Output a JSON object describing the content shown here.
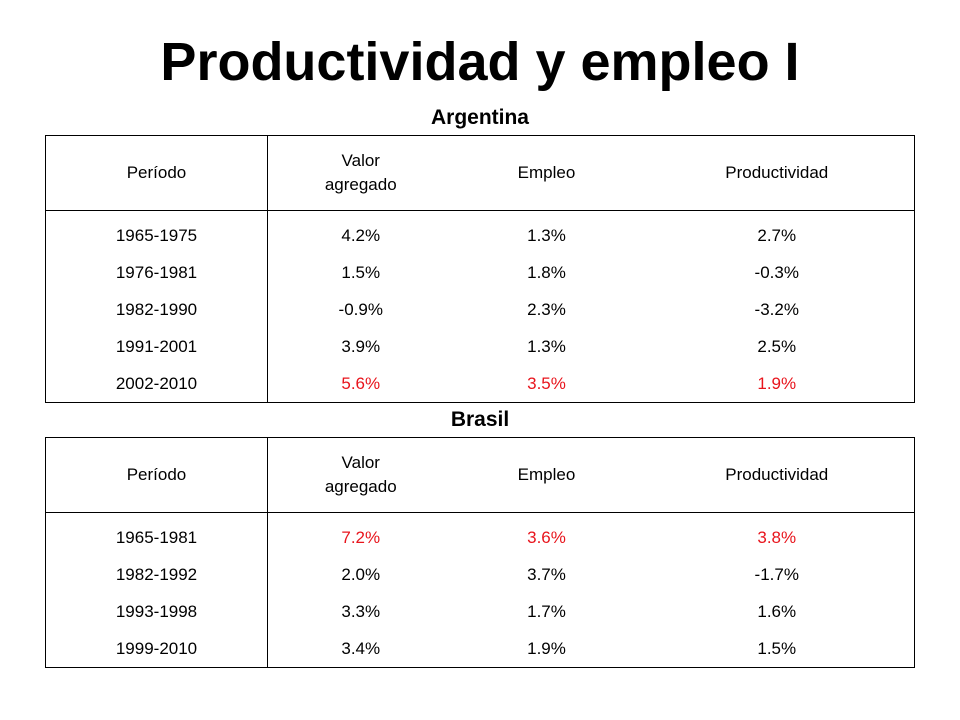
{
  "title": "Productividad y empleo I",
  "argentina": {
    "title": "Argentina",
    "headers": [
      "Período",
      "Valor agregado",
      "Empleo",
      "Productividad"
    ],
    "rows": [
      {
        "periodo": "1965-1975",
        "valor": "4.2%",
        "empleo": "1.3%",
        "productividad": "2.7%",
        "highlight": false
      },
      {
        "periodo": "1976-1981",
        "valor": "1.5%",
        "empleo": "1.8%",
        "productividad": "-0.3%",
        "highlight": false
      },
      {
        "periodo": "1982-1990",
        "valor": "-0.9%",
        "empleo": "2.3%",
        "productividad": "-3.2%",
        "highlight": false
      },
      {
        "periodo": "1991-2001",
        "valor": "3.9%",
        "empleo": "1.3%",
        "productividad": "2.5%",
        "highlight": false
      },
      {
        "periodo": "2002-2010",
        "valor": "5.6%",
        "empleo": "3.5%",
        "productividad": "1.9%",
        "highlight": true
      }
    ]
  },
  "brasil": {
    "title": "Brasil",
    "headers": [
      "Período",
      "Valor agregado",
      "Empleo",
      "Productividad"
    ],
    "rows": [
      {
        "periodo": "1965-1981",
        "valor": "7.2%",
        "empleo": "3.6%",
        "productividad": "3.8%",
        "highlight": true
      },
      {
        "periodo": "1982-1992",
        "valor": "2.0%",
        "empleo": "3.7%",
        "productividad": "-1.7%",
        "highlight": false
      },
      {
        "periodo": "1993-1998",
        "valor": "3.3%",
        "empleo": "1.7%",
        "productividad": "1.6%",
        "highlight": false
      },
      {
        "periodo": "1999-2010",
        "valor": "3.4%",
        "empleo": "1.9%",
        "productividad": "1.5%",
        "highlight": false
      }
    ]
  },
  "colors": {
    "highlight": "#e8141c",
    "text": "#000000"
  }
}
